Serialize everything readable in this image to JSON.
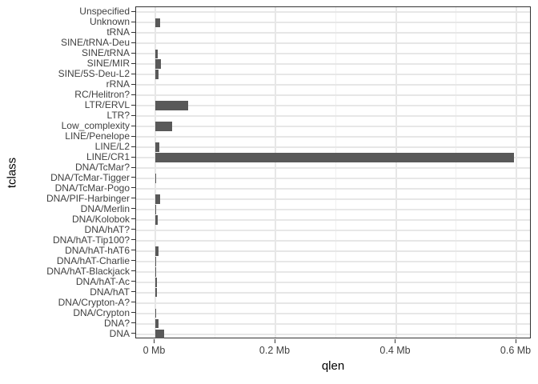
{
  "figure": {
    "x_title": "qlen",
    "y_title": "tclass"
  },
  "chart_data": {
    "type": "bar",
    "orientation": "horizontal",
    "title": "",
    "xlabel": "qlen",
    "ylabel": "tclass",
    "unit": "Mb",
    "xlim": [
      -0.031,
      0.625
    ],
    "grid": true,
    "legend_position": "none",
    "x_major_ticks": [
      {
        "value": 0.0,
        "label": "0 Mb"
      },
      {
        "value": 0.2,
        "label": "0.2 Mb"
      },
      {
        "value": 0.4,
        "label": "0.4 Mb"
      },
      {
        "value": 0.6,
        "label": "0.6 Mb"
      }
    ],
    "x_minor_ticks": [
      0.1,
      0.3,
      0.5
    ],
    "categories": [
      "Unspecified",
      "Unknown",
      "tRNA",
      "SINE/tRNA-Deu",
      "SINE/tRNA",
      "SINE/MIR",
      "SINE/5S-Deu-L2",
      "rRNA",
      "RC/Helitron?",
      "LTR/ERVL",
      "LTR?",
      "Low_complexity",
      "LINE/Penelope",
      "LINE/L2",
      "LINE/CR1",
      "DNA/TcMar?",
      "DNA/TcMar-Tigger",
      "DNA/TcMar-Pogo",
      "DNA/PIF-Harbinger",
      "DNA/Merlin",
      "DNA/Kolobok",
      "DNA/hAT?",
      "DNA/hAT-Tip100?",
      "DNA/hAT-hAT6",
      "DNA/hAT-Charlie",
      "DNA/hAT-Blackjack",
      "DNA/hAT-Ac",
      "DNA/hAT",
      "DNA/Crypton-A?",
      "DNA/Crypton",
      "DNA?",
      "DNA"
    ],
    "values": [
      0,
      0.008,
      0,
      0,
      0.0035,
      0.0096,
      0.0048,
      0,
      0,
      0.0545,
      0,
      0.0279,
      0,
      0.0066,
      0.5947,
      0,
      0.0013,
      0,
      0.008,
      0.0013,
      0.004,
      0,
      0,
      0.0053,
      0.0013,
      0.0013,
      0.0027,
      0.0033,
      0,
      0.0013,
      0.0053,
      0.0146
    ]
  },
  "colors": {
    "bar": "#595959",
    "panel_border": "#333333",
    "grid_major": "#e7e7e7",
    "grid_minor": "#f0f0f0",
    "axis_text": "#414141",
    "title_text": "#000000",
    "background": "#ffffff"
  }
}
